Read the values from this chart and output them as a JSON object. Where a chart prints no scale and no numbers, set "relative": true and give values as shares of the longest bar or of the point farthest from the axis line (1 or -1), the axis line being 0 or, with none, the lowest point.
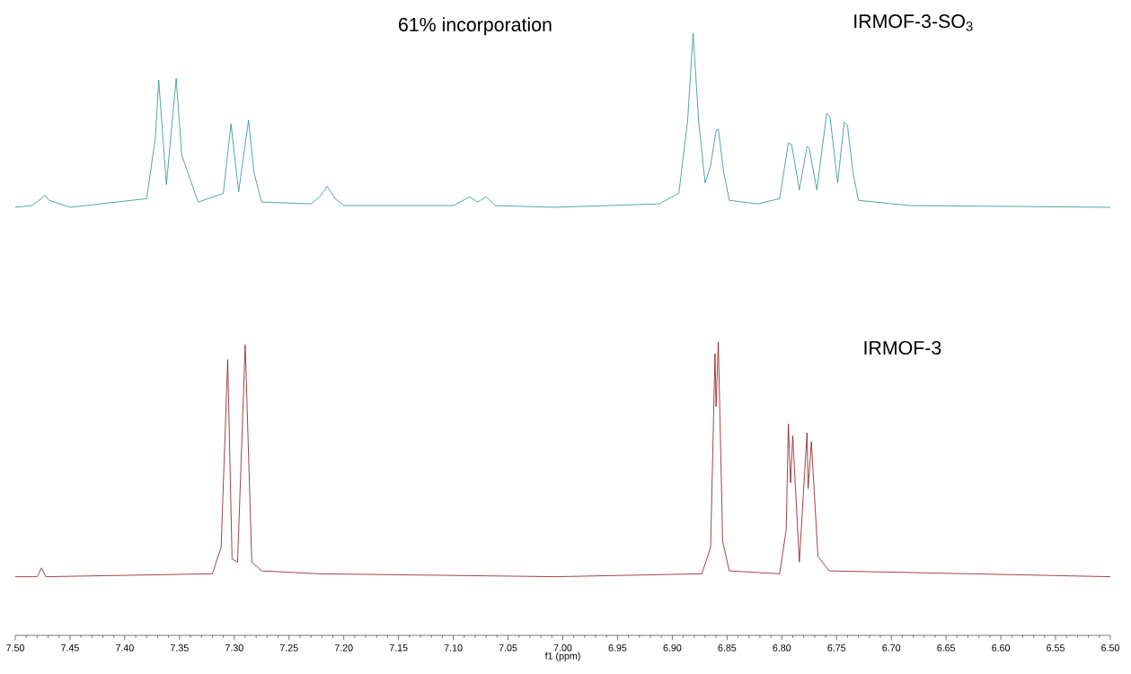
{
  "chart_data": [
    {
      "type": "line",
      "annotations": [
        "61% incorporation"
      ],
      "relative": true,
      "xlim": [
        7.5,
        6.5
      ],
      "tick_labels": false,
      "x": [
        7.5,
        7.485,
        7.476,
        7.473,
        7.469,
        7.45,
        7.38,
        7.372,
        7.369,
        7.362,
        7.353,
        7.348,
        7.333,
        7.31,
        7.303,
        7.296,
        7.287,
        7.282,
        7.275,
        7.23,
        7.222,
        7.215,
        7.208,
        7.2,
        7.1,
        7.085,
        7.078,
        7.07,
        7.062,
        7.006,
        6.912,
        6.894,
        6.886,
        6.881,
        6.876,
        6.87,
        6.865,
        6.86,
        6.858,
        6.853,
        6.848,
        6.822,
        6.802,
        6.794,
        6.791,
        6.784,
        6.777,
        6.775,
        6.768,
        6.759,
        6.756,
        6.749,
        6.743,
        6.74,
        6.735,
        6.73,
        6.683,
        6.5
      ],
      "series": [
        {
          "name": "IRMOF-3-SO$_{3}$",
          "color": "#23918c",
          "values": [
            0,
            0.01,
            0.05,
            0.07,
            0.04,
            0,
            0.05,
            0.4,
            0.73,
            0.13,
            0.74,
            0.3,
            0.03,
            0.08,
            0.48,
            0.09,
            0.5,
            0.2,
            0.03,
            0.02,
            0.06,
            0.12,
            0.05,
            0.01,
            0.01,
            0.06,
            0.03,
            0.06,
            0.01,
            0,
            0.02,
            0.08,
            0.5,
            1.0,
            0.5,
            0.14,
            0.24,
            0.44,
            0.45,
            0.2,
            0.04,
            0.02,
            0.05,
            0.37,
            0.36,
            0.1,
            0.35,
            0.34,
            0.1,
            0.54,
            0.52,
            0.14,
            0.49,
            0.47,
            0.2,
            0.04,
            0.01,
            0
          ]
        }
      ]
    },
    {
      "type": "line",
      "xlabel": "f1 (ppm)",
      "relative": true,
      "xlim": [
        7.5,
        6.5
      ],
      "tick_labels": "x",
      "xticks": [
        {
          "value": 7.5,
          "label": "7.50"
        },
        {
          "value": 7.45,
          "label": "7.45"
        },
        {
          "value": 7.4,
          "label": "7.40"
        },
        {
          "value": 7.35,
          "label": "7.35"
        },
        {
          "value": 7.3,
          "label": "7.30"
        },
        {
          "value": 7.25,
          "label": "7.25"
        },
        {
          "value": 7.2,
          "label": "7.20"
        },
        {
          "value": 7.15,
          "label": "7.15"
        },
        {
          "value": 7.1,
          "label": "7.10"
        },
        {
          "value": 7.05,
          "label": "7.05"
        },
        {
          "value": 7.0,
          "label": "7.00"
        },
        {
          "value": 6.95,
          "label": "6.95"
        },
        {
          "value": 6.9,
          "label": "6.90"
        },
        {
          "value": 6.85,
          "label": "6.85"
        },
        {
          "value": 6.8,
          "label": "6.80"
        },
        {
          "value": 6.75,
          "label": "6.75"
        },
        {
          "value": 6.7,
          "label": "6.70"
        },
        {
          "value": 6.65,
          "label": "6.65"
        },
        {
          "value": 6.6,
          "label": "6.60"
        },
        {
          "value": 6.55,
          "label": "6.55"
        },
        {
          "value": 6.5,
          "label": "6.50"
        }
      ],
      "x": [
        7.5,
        7.48,
        7.476,
        7.472,
        7.32,
        7.312,
        7.306,
        7.302,
        7.297,
        7.29,
        7.284,
        7.275,
        7.223,
        7.006,
        6.873,
        6.865,
        6.861,
        6.86,
        6.858,
        6.854,
        6.848,
        6.802,
        6.796,
        6.794,
        6.792,
        6.79,
        6.784,
        6.777,
        6.776,
        6.773,
        6.767,
        6.757,
        6.5
      ],
      "series": [
        {
          "name": "IRMOF-3",
          "color": "#8c1414",
          "values": [
            0.2,
            0.2,
            0.23,
            0.2,
            0.21,
            0.3,
            0.94,
            0.26,
            0.25,
            0.99,
            0.25,
            0.22,
            0.21,
            0.2,
            0.21,
            0.3,
            0.96,
            0.78,
            1.0,
            0.32,
            0.22,
            0.21,
            0.36,
            0.72,
            0.52,
            0.68,
            0.25,
            0.69,
            0.5,
            0.66,
            0.27,
            0.22,
            0.2
          ]
        }
      ]
    }
  ]
}
